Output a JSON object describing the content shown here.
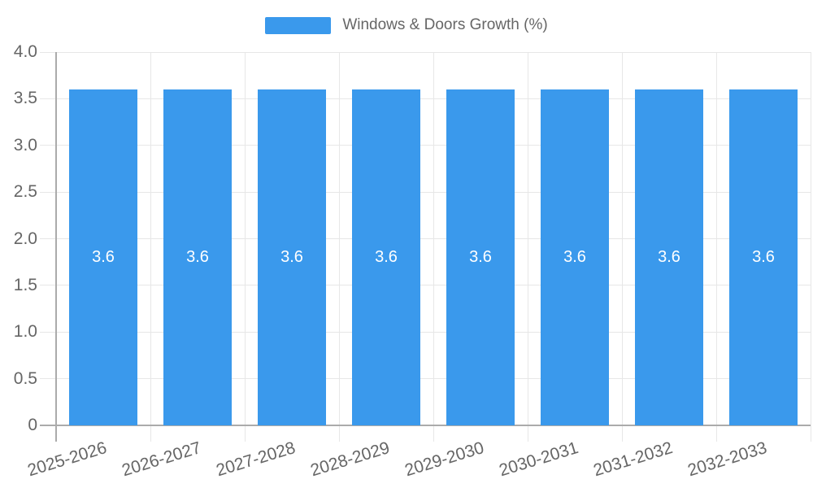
{
  "chart_data": {
    "type": "bar",
    "title": "",
    "series_label": "Windows & Doors Growth (%)",
    "categories": [
      "2025-2026",
      "2026-2027",
      "2027-2028",
      "2028-2029",
      "2029-2030",
      "2030-2031",
      "2031-2032",
      "2032-2033"
    ],
    "values": [
      3.6,
      3.6,
      3.6,
      3.6,
      3.6,
      3.6,
      3.6,
      3.6
    ],
    "value_labels": [
      "3.6",
      "3.6",
      "3.6",
      "3.6",
      "3.6",
      "3.6",
      "3.6",
      "3.6"
    ],
    "ylim": [
      0,
      4
    ],
    "ytick_values": [
      0,
      0.5,
      1.0,
      1.5,
      2.0,
      2.5,
      3.0,
      3.5,
      4.0
    ],
    "ytick_labels": [
      "0",
      "0.5",
      "1.0",
      "1.5",
      "2.0",
      "2.5",
      "3.0",
      "3.5",
      "4.0"
    ],
    "xlabel": "",
    "ylabel": "",
    "grid": "on",
    "legend_position": "top-center"
  },
  "colors": {
    "bar": "#3a99ec",
    "grid": "#e7e7e7",
    "axis": "#ababab",
    "text": "#666666",
    "bar_label": "#ffffff",
    "background": "#ffffff"
  }
}
